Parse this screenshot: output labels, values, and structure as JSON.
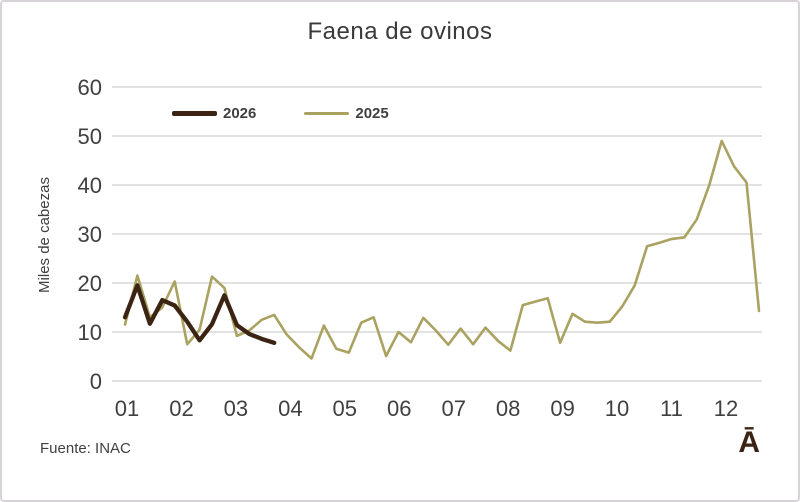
{
  "title": "Faena de ovinos",
  "footer": {
    "source": "Fuente: INAC",
    "corner_glyph": "Ā"
  },
  "colors": {
    "grid": "#d9d9d9",
    "axis_text": "#404040",
    "series_2026": "#3b2413",
    "series_2025": "#a9a261"
  },
  "chart_data": {
    "type": "line",
    "title": "Faena de ovinos",
    "xlabel": "",
    "ylabel": "Miles de cabezas",
    "x_unit": "semana (mes 01-12)",
    "x_tick_labels": [
      "01",
      "02",
      "03",
      "04",
      "05",
      "06",
      "07",
      "08",
      "09",
      "10",
      "11",
      "12"
    ],
    "y_ticks": [
      0,
      10,
      20,
      30,
      40,
      50,
      60
    ],
    "ylim": [
      0,
      60
    ],
    "grid": "horizontal",
    "legend_position": "top-left-inside",
    "series": [
      {
        "name": "2026",
        "color": "#3b2413",
        "stroke_width": 4.3,
        "values": [
          13,
          19.5,
          11.7,
          16.5,
          15.4,
          12.1,
          8.3,
          11.6,
          17.5,
          11.4,
          9.6,
          8.6,
          7.8
        ]
      },
      {
        "name": "2025",
        "color": "#a9a261",
        "stroke_width": 2.6,
        "values": [
          11.5,
          21.5,
          13,
          15,
          20.3,
          7.5,
          10.5,
          21.3,
          19,
          9.2,
          10.3,
          12.5,
          13.5,
          9.5,
          6.9,
          4.6,
          11.3,
          6.6,
          5.8,
          11.9,
          13,
          5.1,
          10,
          7.9,
          12.9,
          10.3,
          7.4,
          10.7,
          7.5,
          10.9,
          8.2,
          6.2,
          15.5,
          16.2,
          16.9,
          7.8,
          13.7,
          12.1,
          11.9,
          12.1,
          15.2,
          19.5,
          27.5,
          28.2,
          29,
          29.3,
          33,
          40,
          49,
          43.8,
          40.5,
          14.3
        ]
      }
    ]
  }
}
